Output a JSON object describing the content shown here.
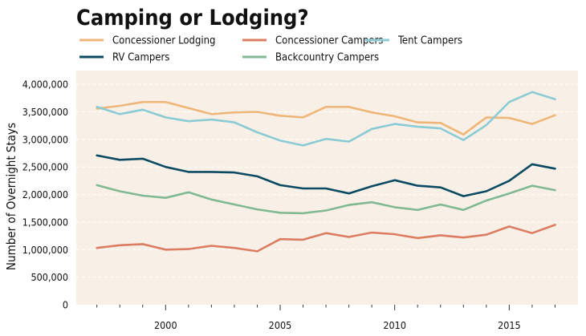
{
  "chart_data": {
    "type": "line",
    "title": "Camping or Lodging?",
    "xlabel": "",
    "ylabel": "Number of Overnight Stays",
    "xlim": [
      1996.1,
      2018.0
    ],
    "ylim": [
      0,
      4250000
    ],
    "grid": true,
    "legend_position": "top",
    "background_color": "#f8f0e6",
    "x_major_ticks": [
      2000,
      2005,
      2010,
      2015
    ],
    "x_tick_labels": [
      "2000",
      "2005",
      "2010",
      "2015"
    ],
    "x_minor_ticks": [
      1997,
      1998,
      1999,
      2001,
      2002,
      2003,
      2004,
      2006,
      2007,
      2008,
      2009,
      2011,
      2012,
      2013,
      2014,
      2016,
      2017
    ],
    "y_ticks": [
      0,
      500000,
      1000000,
      1500000,
      2000000,
      2500000,
      3000000,
      3500000,
      4000000
    ],
    "y_tick_labels": [
      "0",
      "500,000",
      "1,000,000",
      "1,500,000",
      "2,000,000",
      "2,500,000",
      "3,000,000",
      "3,500,000",
      "4,000,000"
    ],
    "x": [
      1997,
      1998,
      1999,
      2000,
      2001,
      2002,
      2003,
      2004,
      2005,
      2006,
      2007,
      2008,
      2009,
      2010,
      2011,
      2012,
      2013,
      2014,
      2015,
      2016,
      2017
    ],
    "series": [
      {
        "name": "Concessioner Lodging",
        "color": "#efb67a",
        "values": [
          3560000,
          3610000,
          3680000,
          3680000,
          3570000,
          3460000,
          3490000,
          3500000,
          3430000,
          3400000,
          3590000,
          3590000,
          3490000,
          3420000,
          3310000,
          3300000,
          3090000,
          3400000,
          3390000,
          3280000,
          3440000
        ]
      },
      {
        "name": "Concessioner Campers",
        "color": "#dc7d62",
        "values": [
          1030000,
          1080000,
          1100000,
          1000000,
          1010000,
          1070000,
          1030000,
          970000,
          1190000,
          1180000,
          1300000,
          1230000,
          1310000,
          1280000,
          1210000,
          1260000,
          1220000,
          1270000,
          1420000,
          1300000,
          1450000
        ]
      },
      {
        "name": "Tent Campers",
        "color": "#8ccbd3",
        "values": [
          3590000,
          3460000,
          3540000,
          3400000,
          3330000,
          3360000,
          3310000,
          3130000,
          2980000,
          2890000,
          3010000,
          2960000,
          3190000,
          3280000,
          3230000,
          3200000,
          2990000,
          3260000,
          3680000,
          3860000,
          3730000
        ]
      },
      {
        "name": "RV Campers",
        "color": "#0a4a62",
        "values": [
          2710000,
          2630000,
          2650000,
          2500000,
          2410000,
          2410000,
          2400000,
          2330000,
          2170000,
          2110000,
          2110000,
          2020000,
          2150000,
          2260000,
          2160000,
          2130000,
          1970000,
          2060000,
          2250000,
          2550000,
          2470000
        ]
      },
      {
        "name": "Backcountry  Campers",
        "color": "#80b994",
        "values": [
          2170000,
          2060000,
          1980000,
          1940000,
          2040000,
          1910000,
          1820000,
          1730000,
          1670000,
          1660000,
          1710000,
          1810000,
          1860000,
          1770000,
          1720000,
          1820000,
          1720000,
          1890000,
          2020000,
          2160000,
          2080000
        ]
      }
    ]
  }
}
